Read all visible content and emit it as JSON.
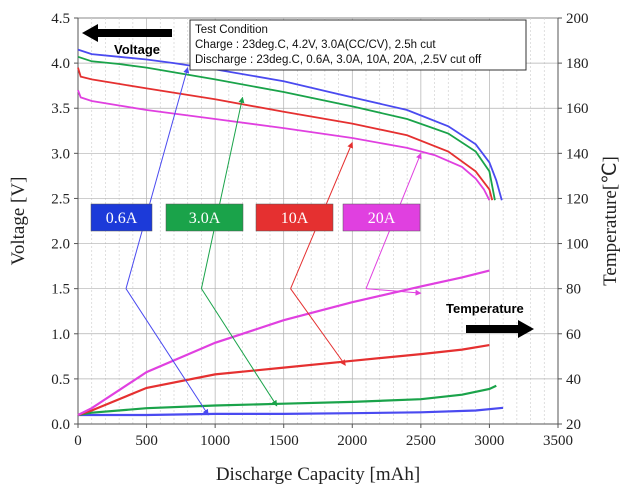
{
  "chart_data": {
    "type": "line",
    "xlabel": "Discharge Capacity [mAh]",
    "ylabel_left": "Voltage [V]",
    "ylabel_right": "Temperature[℃]",
    "xlim": [
      0,
      3500
    ],
    "ylim_left": [
      0,
      4.5
    ],
    "ylim_right": [
      20,
      200
    ],
    "x_ticks": [
      "0",
      "500",
      "1000",
      "1500",
      "2000",
      "2500",
      "3000",
      "3500"
    ],
    "y_left_ticks": [
      "0.0",
      "0.5",
      "1.0",
      "1.5",
      "2.0",
      "2.5",
      "3.0",
      "3.5",
      "4.0",
      "4.5"
    ],
    "y_right_ticks": [
      "20",
      "40",
      "60",
      "80",
      "100",
      "120",
      "140",
      "160",
      "180",
      "200"
    ],
    "grid": true,
    "test_condition": {
      "title": "Test Condition",
      "charge": "Charge : 23deg.C, 4.2V, 3.0A(CC/CV), 2.5h cut",
      "discharge": "Discharge : 23deg.C, 0.6A, 3.0A, 10A, 20A, ,2.5V cut off"
    },
    "voltage_label": "Voltage",
    "temperature_label": "Temperature",
    "rate_labels": [
      "0.6A",
      "3.0A",
      "10A",
      "20A"
    ],
    "colors": {
      "0.6A": "#4a4af0",
      "3.0A": "#1aa34a",
      "10A": "#e53030",
      "20A": "#e040e0"
    },
    "voltage_series": [
      {
        "name": "0.6A",
        "axis": "left",
        "x": [
          0,
          100,
          300,
          500,
          700,
          1000,
          1500,
          2000,
          2400,
          2700,
          2900,
          3000,
          3050,
          3090
        ],
        "y": [
          4.15,
          4.1,
          4.07,
          4.04,
          4.0,
          3.93,
          3.8,
          3.62,
          3.48,
          3.3,
          3.1,
          2.9,
          2.7,
          2.48
        ]
      },
      {
        "name": "3.0A",
        "axis": "left",
        "x": [
          0,
          100,
          300,
          500,
          1000,
          1500,
          2000,
          2400,
          2700,
          2900,
          3000,
          3040
        ],
        "y": [
          4.07,
          4.02,
          3.99,
          3.95,
          3.82,
          3.68,
          3.52,
          3.38,
          3.22,
          3.02,
          2.8,
          2.48
        ]
      },
      {
        "name": "10A",
        "axis": "left",
        "x": [
          0,
          20,
          100,
          300,
          500,
          1000,
          1500,
          2000,
          2400,
          2700,
          2900,
          3000,
          3020
        ],
        "y": [
          3.95,
          3.85,
          3.82,
          3.77,
          3.72,
          3.6,
          3.46,
          3.33,
          3.2,
          3.02,
          2.8,
          2.6,
          2.48
        ]
      },
      {
        "name": "20A",
        "axis": "left",
        "x": [
          0,
          20,
          100,
          300,
          500,
          1000,
          1500,
          2000,
          2400,
          2600,
          2800,
          2900,
          2960,
          3000
        ],
        "y": [
          3.7,
          3.62,
          3.58,
          3.53,
          3.48,
          3.38,
          3.28,
          3.17,
          3.06,
          2.98,
          2.85,
          2.72,
          2.6,
          2.48
        ]
      }
    ],
    "temperature_series": [
      {
        "name": "0.6A",
        "axis": "right",
        "x": [
          0,
          500,
          1000,
          1500,
          2000,
          2500,
          2900,
          3100
        ],
        "y": [
          24,
          24,
          24.5,
          24.5,
          24.8,
          25.2,
          26,
          27.2
        ]
      },
      {
        "name": "3.0A",
        "axis": "right",
        "x": [
          0,
          100,
          500,
          1000,
          1500,
          2000,
          2500,
          2800,
          3000,
          3050
        ],
        "y": [
          24,
          25,
          27,
          28.2,
          29,
          29.8,
          31,
          33,
          35.5,
          37
        ]
      },
      {
        "name": "10A",
        "axis": "right",
        "x": [
          0,
          100,
          500,
          1000,
          1500,
          2000,
          2500,
          2800,
          3000
        ],
        "y": [
          24,
          26,
          36,
          42,
          45,
          48,
          51,
          53,
          55
        ]
      },
      {
        "name": "20A",
        "axis": "right",
        "x": [
          0,
          100,
          500,
          1000,
          1500,
          2000,
          2500,
          2800,
          3000
        ],
        "y": [
          24,
          27,
          43,
          56,
          66,
          74,
          81,
          85,
          88
        ]
      }
    ],
    "annotation_arrows": [
      {
        "series": "0.6A",
        "from": [
          350,
          1.5
        ],
        "to_voltage": [
          800,
          3.95
        ],
        "to_temp": [
          950,
          0.1
        ]
      },
      {
        "series": "3.0A",
        "from": [
          900,
          1.5
        ],
        "to_voltage": [
          1200,
          3.62
        ],
        "to_temp": [
          1450,
          0.2
        ]
      },
      {
        "series": "10A",
        "from": [
          1550,
          1.5
        ],
        "to_voltage": [
          2000,
          3.12
        ],
        "to_temp": [
          1950,
          0.65
        ]
      },
      {
        "series": "20A",
        "from": [
          2100,
          1.5
        ],
        "to_voltage": [
          2500,
          3.0
        ],
        "to_temp": [
          2500,
          1.45
        ]
      }
    ]
  }
}
